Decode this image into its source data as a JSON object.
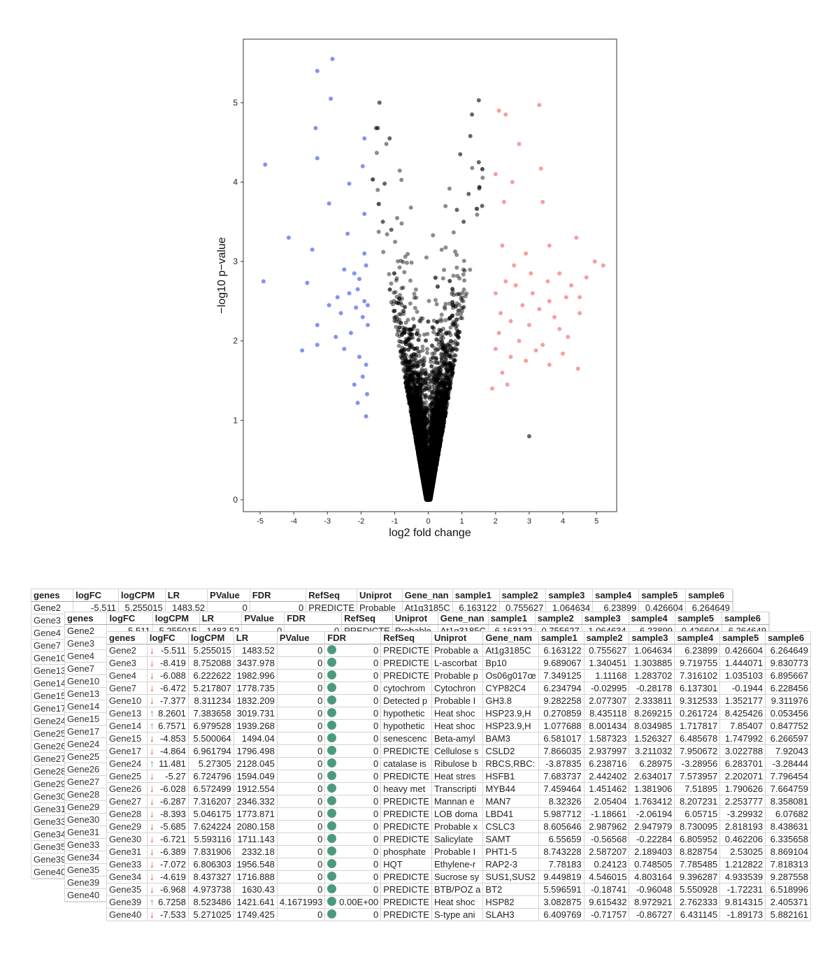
{
  "chart_data": {
    "type": "scatter",
    "xlabel": "log2 fold change",
    "ylabel": "−log10 p−value",
    "xlim": [
      -5.5,
      5.6
    ],
    "ylim": [
      -0.15,
      5.8
    ],
    "xticks": [
      -5,
      -4,
      -3,
      -2,
      -1,
      0,
      1,
      2,
      3,
      4,
      5
    ],
    "yticks": [
      0,
      1,
      2,
      3,
      4,
      5
    ],
    "grid": false,
    "colors": {
      "down": "#5b6cf0",
      "up": "#f26b6b",
      "ns": "#000000"
    },
    "down_points": [
      [
        -2.85,
        5.55
      ],
      [
        -3.3,
        5.4
      ],
      [
        -2.9,
        5.05
      ],
      [
        -3.35,
        4.68
      ],
      [
        -1.9,
        4.55
      ],
      [
        -3.3,
        4.3
      ],
      [
        -4.85,
        4.22
      ],
      [
        -2.35,
        3.98
      ],
      [
        -1.95,
        4.2
      ],
      [
        -2.95,
        3.73
      ],
      [
        -1.9,
        3.6
      ],
      [
        -4.15,
        3.3
      ],
      [
        -2.4,
        3.35
      ],
      [
        -3.45,
        3.15
      ],
      [
        -1.9,
        3.1
      ],
      [
        -4.9,
        2.75
      ],
      [
        -3.6,
        2.73
      ],
      [
        -2.5,
        2.9
      ],
      [
        -2.2,
        2.85
      ],
      [
        -1.85,
        2.95
      ],
      [
        -2.05,
        2.78
      ],
      [
        -2.35,
        2.6
      ],
      [
        -1.9,
        2.5
      ],
      [
        -2.15,
        2.42
      ],
      [
        -2.6,
        2.35
      ],
      [
        -3.3,
        2.2
      ],
      [
        -1.95,
        2.3
      ],
      [
        -2.3,
        2.1
      ],
      [
        -1.8,
        2.2
      ],
      [
        -2.75,
        2.05
      ],
      [
        -3.3,
        1.95
      ],
      [
        -3.75,
        1.88
      ],
      [
        -2.05,
        1.8
      ],
      [
        -1.85,
        1.7
      ],
      [
        -2.5,
        1.9
      ],
      [
        -1.95,
        1.55
      ],
      [
        -2.2,
        1.45
      ],
      [
        -1.82,
        1.33
      ],
      [
        -2.1,
        1.22
      ],
      [
        -1.85,
        1.05
      ],
      [
        -2.7,
        2.55
      ],
      [
        -2.95,
        2.45
      ],
      [
        -2.1,
        2.65
      ],
      [
        -1.8,
        2.45
      ]
    ],
    "up_points": [
      [
        2.1,
        4.9
      ],
      [
        3.3,
        4.97
      ],
      [
        2.3,
        4.85
      ],
      [
        2.7,
        4.48
      ],
      [
        3.35,
        4.17
      ],
      [
        2.0,
        4.1
      ],
      [
        2.5,
        4.0
      ],
      [
        3.4,
        3.75
      ],
      [
        2.25,
        3.75
      ],
      [
        4.4,
        3.3
      ],
      [
        3.6,
        3.2
      ],
      [
        2.2,
        3.2
      ],
      [
        2.9,
        3.1
      ],
      [
        4.95,
        3.0
      ],
      [
        5.2,
        2.95
      ],
      [
        4.7,
        2.8
      ],
      [
        3.9,
        2.85
      ],
      [
        2.3,
        2.75
      ],
      [
        2.6,
        2.7
      ],
      [
        3.1,
        2.6
      ],
      [
        2.0,
        2.6
      ],
      [
        4.1,
        2.55
      ],
      [
        4.5,
        2.55
      ],
      [
        3.6,
        2.5
      ],
      [
        2.8,
        2.45
      ],
      [
        3.3,
        2.4
      ],
      [
        2.15,
        2.35
      ],
      [
        4.5,
        2.35
      ],
      [
        3.75,
        2.3
      ],
      [
        2.45,
        2.25
      ],
      [
        3.0,
        2.2
      ],
      [
        3.9,
        2.15
      ],
      [
        2.1,
        2.1
      ],
      [
        4.15,
        2.05
      ],
      [
        2.7,
        2.0
      ],
      [
        3.4,
        1.95
      ],
      [
        3.2,
        1.88
      ],
      [
        2.0,
        1.9
      ],
      [
        4.0,
        1.84
      ],
      [
        2.45,
        1.8
      ],
      [
        4.45,
        1.65
      ],
      [
        2.9,
        1.75
      ],
      [
        2.2,
        1.6
      ],
      [
        3.6,
        1.7
      ],
      [
        2.35,
        1.45
      ],
      [
        1.9,
        1.4
      ],
      [
        3.05,
        2.85
      ],
      [
        2.55,
        2.95
      ],
      [
        3.55,
        2.75
      ],
      [
        4.25,
        2.7
      ]
    ],
    "ns_points": [
      [
        -1.45,
        5.0
      ],
      [
        1.5,
        5.03
      ],
      [
        1.3,
        4.85
      ],
      [
        -1.55,
        4.68
      ],
      [
        -1.5,
        4.68
      ],
      [
        -1.15,
        4.55
      ],
      [
        1.25,
        4.58
      ],
      [
        0.95,
        4.35
      ],
      [
        1.5,
        4.25
      ],
      [
        -1.3,
        3.98
      ],
      [
        3.0,
        0.8
      ],
      [
        -1.35,
        3.5
      ],
      [
        1.2,
        3.85
      ],
      [
        0.85,
        3.65
      ],
      [
        1.6,
        3.7
      ],
      [
        -1.1,
        3.4
      ],
      [
        1.05,
        3.5
      ]
    ],
    "ns_cloud": {
      "count": 11000,
      "x_spread": 1.8,
      "max_y": 4.7
    }
  },
  "tables": {
    "columns": [
      "genes",
      "logFC",
      "logCPM",
      "LR",
      "PValue",
      "FDR",
      "RefSeq",
      "Uniprot",
      "Gene_nam",
      "sample1",
      "sample2",
      "sample3",
      "sample4",
      "sample5",
      "sample6"
    ],
    "front_columns_last": "Gene_nan",
    "back_gene_list": [
      "Gene2",
      "Gene3",
      "Gene4",
      "Gene7",
      "Gene10",
      "Gene13",
      "Gene14",
      "Gene15",
      "Gene17",
      "Gene24",
      "Gene25",
      "Gene26",
      "Gene27",
      "Gene28",
      "Gene29",
      "Gene30",
      "Gene31",
      "Gene33",
      "Gene34",
      "Gene35",
      "Gene39",
      "Gene40"
    ],
    "mid_gene_list": [
      "Gene2",
      "Gene3",
      "Gene4",
      "Gene7",
      "Gene10",
      "Gene13",
      "Gene14",
      "Gene15",
      "Gene17",
      "Gene24",
      "Gene25",
      "Gene26",
      "Gene27",
      "Gene28",
      "Gene29",
      "Gene30",
      "Gene31",
      "Gene33",
      "Gene34",
      "Gene35",
      "Gene39",
      "Gene40"
    ],
    "back_first_row": [
      "Gene2",
      "-5.511",
      "5.255015",
      "1483.52",
      "0",
      "0",
      "PREDICTE",
      "Probable",
      "At1g3185C",
      "6.163122",
      "0.755627",
      "1.064634",
      "6.23899",
      "0.426604",
      "6.264649"
    ],
    "mid_first_row": [
      "Gene2",
      "-5.511",
      "5.255015",
      "1483.52",
      "0",
      "0",
      "PREDICTE",
      "Probable",
      "At1g3185C",
      "6.163122",
      "0.755627",
      "1.064634",
      "6.23899",
      "0.426604",
      "6.264649"
    ],
    "rows": [
      [
        "Gene2",
        "down",
        "-5.511",
        "5.255015",
        "1483.52",
        "0",
        "0",
        "PREDICTE",
        "Probable a",
        "At1g3185C",
        "6.163122",
        "0.755627",
        "1.064634",
        "6.23899",
        "0.426604",
        "6.264649"
      ],
      [
        "Gene3",
        "down",
        "-8.419",
        "8.752088",
        "3437.978",
        "0",
        "0",
        "PREDICTE",
        "L-ascorbat",
        "Bp10",
        "9.689067",
        "1.340451",
        "1.303885",
        "9.719755",
        "1.444071",
        "9.830773"
      ],
      [
        "Gene4",
        "down",
        "-6.088",
        "6.222622",
        "1982.996",
        "0",
        "0",
        "PREDICTE",
        "Probable p",
        "Os06g017œ",
        "7.349125",
        "1.11168",
        "1.283702",
        "7.316102",
        "1.035103",
        "6.895667"
      ],
      [
        "Gene7",
        "down",
        "-6.472",
        "5.217807",
        "1778.735",
        "0",
        "0",
        "cytochrom",
        "Cytochron",
        "CYP82C4",
        "6.234794",
        "-0.02995",
        "-0.28178",
        "6.137301",
        "-0.1944",
        "6.228456"
      ],
      [
        "Gene10",
        "down",
        "-7.377",
        "8.311234",
        "1832.209",
        "0",
        "0",
        "Detected p",
        "Probable I",
        "GH3.8",
        "9.282258",
        "2.077307",
        "2.333811",
        "9.312533",
        "1.352177",
        "9.311976"
      ],
      [
        "Gene13",
        "up",
        "8.2601",
        "7.383658",
        "3019.731",
        "0",
        "0",
        "hypothetic",
        "Heat shoc",
        "HSP23.9,H",
        "0.270859",
        "8.435118",
        "8.269215",
        "0.261724",
        "8.425426",
        "0.053456"
      ],
      [
        "Gene14",
        "up",
        "6.7571",
        "6.979528",
        "1939.268",
        "0",
        "0",
        "hypothetic",
        "Heat shoc",
        "HSP23.9,H",
        "1.077688",
        "8.001434",
        "8.034985",
        "1.717817",
        "7.85407",
        "0.847752"
      ],
      [
        "Gene15",
        "down",
        "-4.853",
        "5.500064",
        "1494.04",
        "0",
        "0",
        "senescenc",
        "Beta-amyl",
        "BAM3",
        "6.581017",
        "1.587323",
        "1.526327",
        "6.485678",
        "1.747992",
        "6.266597"
      ],
      [
        "Gene17",
        "down",
        "-4.864",
        "6.961794",
        "1796.498",
        "0",
        "0",
        "PREDICTE",
        "Cellulose s",
        "CSLD2",
        "7.866035",
        "2.937997",
        "3.211032",
        "7.950672",
        "3.022788",
        "7.92043"
      ],
      [
        "Gene24",
        "up",
        "11.481",
        "5.27305",
        "2128.045",
        "0",
        "0",
        "catalase is",
        "Ribulose b",
        "RBCS,RBC:",
        "-3.87835",
        "6.238716",
        "6.28975",
        "-3.28956",
        "6.283701",
        "-3.28444"
      ],
      [
        "Gene25",
        "down",
        "-5.27",
        "6.724796",
        "1594.049",
        "0",
        "0",
        "PREDICTE",
        "Heat stres",
        "HSFB1",
        "7.683737",
        "2.442402",
        "2.634017",
        "7.573957",
        "2.202071",
        "7.796454"
      ],
      [
        "Gene26",
        "down",
        "-6.028",
        "6.572499",
        "1912.554",
        "0",
        "0",
        "heavy met",
        "Transcripti",
        "MYB44",
        "7.459464",
        "1.451462",
        "1.381906",
        "7.51895",
        "1.790626",
        "7.664759"
      ],
      [
        "Gene27",
        "down",
        "-6.287",
        "7.316207",
        "2346.332",
        "0",
        "0",
        "PREDICTE",
        "Mannan e",
        "MAN7",
        "8.32326",
        "2.05404",
        "1.763412",
        "8.207231",
        "2.253777",
        "8.358081"
      ],
      [
        "Gene28",
        "down",
        "-8.393",
        "5.046175",
        "1773.871",
        "0",
        "0",
        "PREDICTE",
        "LOB doma",
        "LBD41",
        "5.987712",
        "-1.18661",
        "-2.06194",
        "6.05715",
        "-3.29932",
        "6.07682"
      ],
      [
        "Gene29",
        "down",
        "-5.685",
        "7.624224",
        "2080.158",
        "0",
        "0",
        "PREDICTE",
        "Probable x",
        "CSLC3",
        "8.605646",
        "2.987962",
        "2.947979",
        "8.730095",
        "2.818193",
        "8.438631"
      ],
      [
        "Gene30",
        "down",
        "-6.721",
        "5.593116",
        "1711.143",
        "0",
        "0",
        "PREDICTE",
        "Salicylate",
        "SAMT",
        "6.55659",
        "-0.56568",
        "-0.22284",
        "6.805952",
        "0.462206",
        "6.335658"
      ],
      [
        "Gene31",
        "down",
        "-6.389",
        "7.831906",
        "2332.18",
        "0",
        "0",
        "phosphate",
        "Probable I",
        "PHT1-5",
        "8.743228",
        "2.587207",
        "2.189403",
        "8.828754",
        "2.53025",
        "8.869104"
      ],
      [
        "Gene33",
        "down",
        "-7.072",
        "6.806303",
        "1956.548",
        "0",
        "0",
        "HQT",
        "Ethylene-r",
        "RAP2-3",
        "7.78183",
        "0.24123",
        "0.748505",
        "7.785485",
        "1.212822",
        "7.818313"
      ],
      [
        "Gene34",
        "down",
        "-4.619",
        "8.437327",
        "1716.888",
        "0",
        "0",
        "PREDICTE",
        "Sucrose sy",
        "SUS1,SUS2",
        "9.449819",
        "4.546015",
        "4.803164",
        "9.396287",
        "4.933539",
        "9.287558"
      ],
      [
        "Gene35",
        "down",
        "-6.968",
        "4.973738",
        "1630.43",
        "0",
        "0",
        "PREDICTE",
        "BTB/POZ a",
        "BT2",
        "5.596591",
        "-0.18741",
        "-0.96048",
        "5.550928",
        "-1.72231",
        "6.518996"
      ],
      [
        "Gene39",
        "up",
        "6.7258",
        "8.523486",
        "1421.641",
        "4.1671993",
        "0.00E+00",
        "PREDICTE",
        "Heat shoc",
        "HSP82",
        "3.082875",
        "9.615432",
        "8.972921",
        "2.762333",
        "9.814315",
        "2.405371"
      ],
      [
        "Gene40",
        "down",
        "-7.533",
        "5.271025",
        "1749.425",
        "0",
        "0",
        "PREDICTE",
        "S-type ani",
        "SLAH3",
        "6.409769",
        "-0.71757",
        "-0.86727",
        "6.431145",
        "-1.89173",
        "5.882161"
      ]
    ]
  }
}
